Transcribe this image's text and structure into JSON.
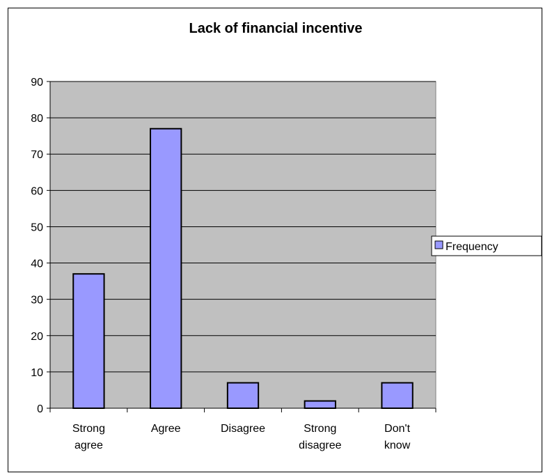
{
  "chart_data": {
    "type": "bar",
    "title": "Lack of financial incentive",
    "xlabel": "",
    "ylabel": "",
    "categories": [
      [
        "Strong",
        "agree"
      ],
      [
        "Agree"
      ],
      [
        "Disagree"
      ],
      [
        "Strong",
        "disagree"
      ],
      [
        "Don't",
        "know"
      ]
    ],
    "series": [
      {
        "name": "Frequency",
        "values": [
          37,
          77,
          7,
          2,
          7
        ],
        "color": "#9999ff"
      }
    ],
    "ylim": [
      0,
      90
    ],
    "yticks": [
      0,
      10,
      20,
      30,
      40,
      50,
      60,
      70,
      80,
      90
    ],
    "grid": true,
    "plot_background": "#c0c0c0",
    "legend": "right"
  }
}
